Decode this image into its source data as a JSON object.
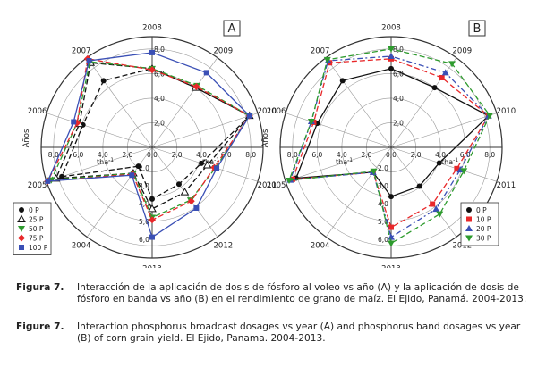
{
  "chart_data": [
    {
      "type": "radar",
      "panel_label": "A",
      "axis_label": "Años",
      "radial_unit": "tha",
      "radial_unit_sup": "-1",
      "years": [
        "2004",
        "2005",
        "2006",
        "2007",
        "2008",
        "2009",
        "2010",
        "2011",
        "2012",
        "2013"
      ],
      "rlim": [
        0,
        9
      ],
      "ring_ticks": [
        "2,0",
        "4,0",
        "6,0",
        "8,0"
      ],
      "zero_tick": "0,0",
      "upper_ticks": [
        "2,0",
        "4,0",
        "6,0",
        "8,0"
      ],
      "lower_ticks": [
        "2,0",
        "3,0",
        "4,0",
        "5,0",
        "6,0"
      ],
      "series": [
        {
          "name": "0 P",
          "color": "#111111",
          "marker": "circle-filled",
          "dash": "6,3",
          "values": [
            1.9,
            7.7,
            5.9,
            6.7,
            6.4,
            6.0,
            8.3,
            4.2,
            3.7,
            4.2
          ]
        },
        {
          "name": "25 P",
          "color": "#111111",
          "marker": "triangle-open",
          "dash": "6,3",
          "values": [
            2.6,
            8.2,
            6.2,
            8.5,
            6.4,
            6.0,
            8.3,
            4.7,
            4.5,
            5.0
          ]
        },
        {
          "name": "50 P",
          "color": "#2e9b2e",
          "marker": "triangle-down",
          "dash": "6,3",
          "values": [
            2.6,
            8.6,
            6.4,
            8.6,
            6.4,
            6.2,
            8.3,
            5.4,
            5.3,
            5.7
          ]
        },
        {
          "name": "75 P",
          "color": "#e8282a",
          "marker": "diamond",
          "dash": "6,3",
          "values": [
            2.7,
            8.9,
            6.4,
            8.9,
            6.3,
            6.1,
            8.3,
            5.3,
            5.4,
            5.9
          ]
        },
        {
          "name": "100 P",
          "color": "#3a4fb5",
          "marker": "square",
          "dash": "",
          "values": [
            2.8,
            8.9,
            6.7,
            8.7,
            7.7,
            7.5,
            8.3,
            5.5,
            6.1,
            7.3
          ]
        }
      ]
    },
    {
      "type": "radar",
      "panel_label": "B",
      "axis_label": "Años",
      "radial_unit": "tha",
      "radial_unit_sup": "-1",
      "years": [
        "2004",
        "2005",
        "2006",
        "2007",
        "2008",
        "2009",
        "2010",
        "2011",
        "2012",
        "2013"
      ],
      "rlim": [
        0,
        9
      ],
      "ring_ticks": [
        "2,0",
        "4,0",
        "6,0",
        "8,0"
      ],
      "zero_tick": "0,0",
      "upper_ticks": [
        "2,0",
        "4,0",
        "6,0",
        "8,0"
      ],
      "lower_ticks": [
        "2,0",
        "3,0",
        "4,0",
        "5,0",
        "6,0"
      ],
      "series": [
        {
          "name": "0 P",
          "color": "#111111",
          "marker": "circle-filled",
          "dash": "",
          "values": [
            2.5,
            8.1,
            6.3,
            6.7,
            6.4,
            6.0,
            8.3,
            4.1,
            3.9,
            4.0
          ]
        },
        {
          "name": "10 P",
          "color": "#e8282a",
          "marker": "square",
          "dash": "6,3",
          "values": [
            2.5,
            8.4,
            6.6,
            8.5,
            7.2,
            7.0,
            8.3,
            5.6,
            5.7,
            6.5
          ]
        },
        {
          "name": "20 P",
          "color": "#3a4fb5",
          "marker": "triangle-up",
          "dash": "6,3,2,3",
          "values": [
            2.5,
            8.6,
            6.8,
            8.7,
            7.4,
            7.5,
            8.3,
            5.9,
            6.2,
            7.3
          ]
        },
        {
          "name": "30 P",
          "color": "#2e9b2e",
          "marker": "triangle-down",
          "dash": "6,3",
          "values": [
            2.4,
            8.7,
            6.8,
            8.8,
            8.0,
            8.4,
            8.4,
            6.2,
            6.7,
            7.8
          ]
        }
      ]
    }
  ],
  "caption": [
    {
      "label": "Figura 7.",
      "text": "Interacción de la aplicación de dosis de fósforo al voleo vs año (A) y la aplicación de dosis de fósforo en banda vs año (B) en el rendimiento de grano de maíz. El Ejido, Panamá. 2004-2013."
    },
    {
      "label": "Figure 7.",
      "text": "Interaction phosphorus broadcast dosages vs year (A) and phosphorus band dosages vs year (B) of corn grain yield. El Ejido, Panama. 2004-2013."
    }
  ]
}
